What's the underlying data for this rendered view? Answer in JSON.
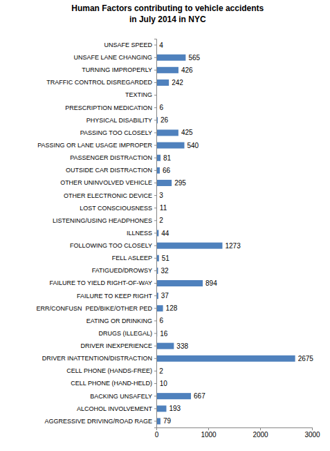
{
  "chart_data": {
    "type": "bar",
    "orientation": "horizontal",
    "title": [
      "Human Factors contributing to vehicle accidents",
      "in July 2014 in NYC"
    ],
    "categories": [
      "UNSAFE SPEED",
      "UNSAFE LANE CHANGING",
      "TURNING IMPROPERLY",
      "TRAFFIC CONTROL DISREGARDED",
      "TEXTING",
      "PRESCRIPTION MEDICATION",
      "PHYSICAL DISABILITY",
      "PASSING TOO CLOSELY",
      "PASSING OR LANE USAGE IMPROPER",
      "PASSENGER DISTRACTION",
      "OUTSIDE CAR DISTRACTION",
      "OTHER UNINVOLVED VEHICLE",
      "OTHER ELECTRONIC DEVICE",
      "LOST CONSCIOUSNESS",
      "LISTENING/USING HEADPHONES",
      "ILLNESS",
      "FOLLOWING TOO CLOSELY",
      "FELL ASLEEP",
      "FATIGUED/DROWSY",
      "FAILURE TO YIELD RIGHT-OF-WAY",
      "FAILURE TO KEEP RIGHT",
      "ERR/CONFUSN  PED/BIKE/OTHER PED",
      "EATING OR DRINKING",
      "DRUGS (ILLEGAL)",
      "DRIVER INEXPERIENCE",
      "DRIVER INATTENTION/DISTRACTION",
      "CELL PHONE (HANDS-FREE)",
      "CELL PHONE (HAND-HELD)",
      "BACKING UNSAFELY",
      "ALCOHOL INVOLVEMENT",
      "AGGRESSIVE DRIVING/ROAD RAGE"
    ],
    "values": [
      4,
      565,
      426,
      242,
      null,
      6,
      26,
      425,
      540,
      81,
      66,
      295,
      3,
      11,
      2,
      44,
      1273,
      51,
      32,
      894,
      37,
      128,
      6,
      16,
      338,
      2675,
      2,
      10,
      667,
      193,
      79
    ],
    "color": "#4f81bd",
    "xlim": [
      0,
      3000
    ],
    "xticks": [
      0,
      1000,
      2000,
      3000
    ],
    "grid": false,
    "data_labels": true
  }
}
